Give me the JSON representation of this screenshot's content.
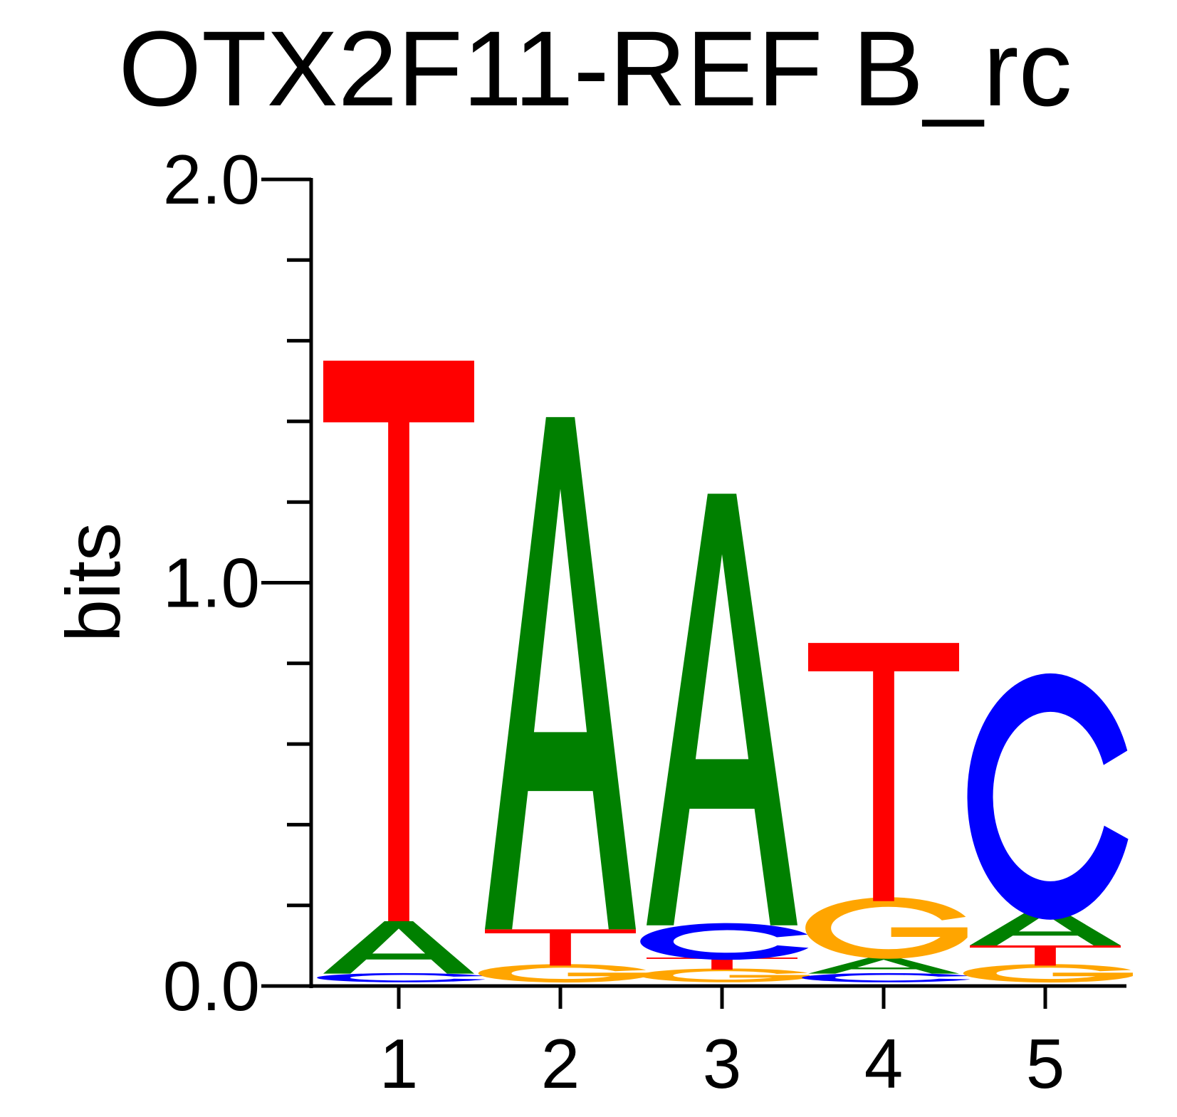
{
  "chart_data": {
    "type": "sequence-logo",
    "title": "OTX2F11-REF B_rc",
    "ylabel": "bits",
    "xlabel": "",
    "ylim": [
      0,
      2
    ],
    "y_tick_labels": [
      "0.0",
      "1.0",
      "2.0"
    ],
    "y_minor_tick_step": 0.2,
    "x_tick_labels": [
      "1",
      "2",
      "3",
      "4",
      "5"
    ],
    "colors": {
      "A": "#008000",
      "C": "#0000ff",
      "G": "#ffa500",
      "T": "#ff0000"
    },
    "positions": [
      {
        "x": "1",
        "letters": [
          {
            "base": "C",
            "bits": 0.02
          },
          {
            "base": "A",
            "bits": 0.13
          },
          {
            "base": "T",
            "bits": 1.39
          }
        ]
      },
      {
        "x": "2",
        "letters": [
          {
            "base": "G",
            "bits": 0.04
          },
          {
            "base": "T",
            "bits": 0.09
          },
          {
            "base": "A",
            "bits": 1.27
          }
        ]
      },
      {
        "x": "3",
        "letters": [
          {
            "base": "G",
            "bits": 0.03
          },
          {
            "base": "T",
            "bits": 0.03
          },
          {
            "base": "C",
            "bits": 0.08
          },
          {
            "base": "A",
            "bits": 1.07
          }
        ]
      },
      {
        "x": "4",
        "letters": [
          {
            "base": "C",
            "bits": 0.02
          },
          {
            "base": "A",
            "bits": 0.04
          },
          {
            "base": "G",
            "bits": 0.14
          },
          {
            "base": "T",
            "bits": 0.64
          }
        ]
      },
      {
        "x": "5",
        "letters": [
          {
            "base": "G",
            "bits": 0.04
          },
          {
            "base": "T",
            "bits": 0.05
          },
          {
            "base": "A",
            "bits": 0.09
          },
          {
            "base": "C",
            "bits": 0.56
          }
        ]
      }
    ]
  }
}
